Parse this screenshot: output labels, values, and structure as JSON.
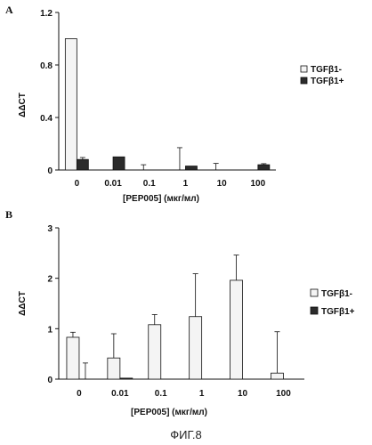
{
  "figure_caption": "ФИГ.8",
  "colors": {
    "light_bar": "#f4f4f4",
    "dark_bar": "#2b2b2b",
    "axis": "#111111"
  },
  "chart_data": [
    {
      "panel": "A",
      "type": "bar",
      "categories": [
        "0",
        "0.01",
        "0.1",
        "1",
        "10",
        "100"
      ],
      "xlabel": "[PEP005] (мкг/мл)",
      "ylabel": "ΔΔCT",
      "ylim": [
        0,
        1.2
      ],
      "yticks": [
        "0",
        "0.4",
        "0.8",
        "1.2"
      ],
      "legend_position": "right",
      "series": [
        {
          "name": "TGFβ1-",
          "values": [
            1.0,
            0,
            0,
            0,
            0,
            0
          ],
          "errors": [
            0,
            0,
            0.04,
            0.17,
            0.05,
            0
          ],
          "style": "light"
        },
        {
          "name": "TGFβ1+",
          "values": [
            0.08,
            0.1,
            0,
            0.03,
            0,
            0.04
          ],
          "errors": [
            0.015,
            0,
            0,
            0,
            0,
            0.008
          ],
          "style": "dark"
        }
      ]
    },
    {
      "panel": "B",
      "type": "bar",
      "categories": [
        "0",
        "0.01",
        "0.1",
        "1",
        "10",
        "100"
      ],
      "xlabel": "[PEP005]  (мкг/мл)",
      "ylabel": "ΔΔCT",
      "ylim": [
        0,
        3
      ],
      "yticks": [
        "0",
        "1",
        "2",
        "3"
      ],
      "legend_position": "right",
      "series": [
        {
          "name": "TGFβ1-",
          "values": [
            0.83,
            0.42,
            1.08,
            1.24,
            1.96,
            0.12
          ],
          "errors": [
            0.1,
            0.48,
            0.2,
            0.85,
            0.5,
            0.82
          ],
          "style": "light"
        },
        {
          "name": "TGFβ1+",
          "values": [
            0,
            0.02,
            0,
            0,
            0,
            0
          ],
          "errors": [
            0.32,
            0,
            0,
            0,
            0,
            0
          ],
          "style": "dark"
        }
      ]
    }
  ]
}
